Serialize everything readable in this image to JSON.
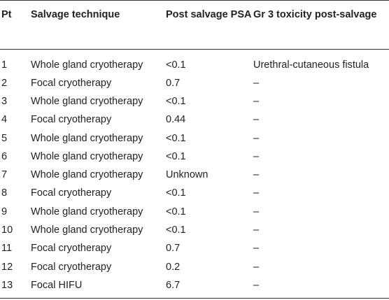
{
  "table": {
    "headers": {
      "pt": "Pt",
      "technique": "Salvage technique",
      "psa": "Post salvage PSA",
      "toxicity": "Gr 3 toxicity post-salvage"
    },
    "rows": [
      {
        "pt": "1",
        "technique": "Whole gland cryotherapy",
        "psa": "<0.1",
        "toxicity": "Urethral-cutaneous fistula"
      },
      {
        "pt": "2",
        "technique": "Focal cryotherapy",
        "psa": "0.7",
        "toxicity": "–"
      },
      {
        "pt": "3",
        "technique": "Whole gland cryotherapy",
        "psa": "<0.1",
        "toxicity": "–"
      },
      {
        "pt": "4",
        "technique": "Focal cryotherapy",
        "psa": "0.44",
        "toxicity": "–"
      },
      {
        "pt": "5",
        "technique": "Whole gland cryotherapy",
        "psa": "<0.1",
        "toxicity": "–"
      },
      {
        "pt": "6",
        "technique": "Whole gland cryotherapy",
        "psa": "<0.1",
        "toxicity": "–"
      },
      {
        "pt": "7",
        "technique": "Whole gland cryotherapy",
        "psa": "Unknown",
        "toxicity": "–"
      },
      {
        "pt": "8",
        "technique": "Focal cryotherapy",
        "psa": "<0.1",
        "toxicity": "–"
      },
      {
        "pt": "9",
        "technique": "Whole gland cryotherapy",
        "psa": "<0.1",
        "toxicity": "–"
      },
      {
        "pt": "10",
        "technique": "Whole gland cryotherapy",
        "psa": "<0.1",
        "toxicity": "–"
      },
      {
        "pt": "11",
        "technique": "Focal cryotherapy",
        "psa": "0.7",
        "toxicity": "–"
      },
      {
        "pt": "12",
        "technique": "Focal cryotherapy",
        "psa": "0.2",
        "toxicity": "–"
      },
      {
        "pt": "13",
        "technique": "Focal HIFU",
        "psa": "6.7",
        "toxicity": "–"
      }
    ]
  }
}
